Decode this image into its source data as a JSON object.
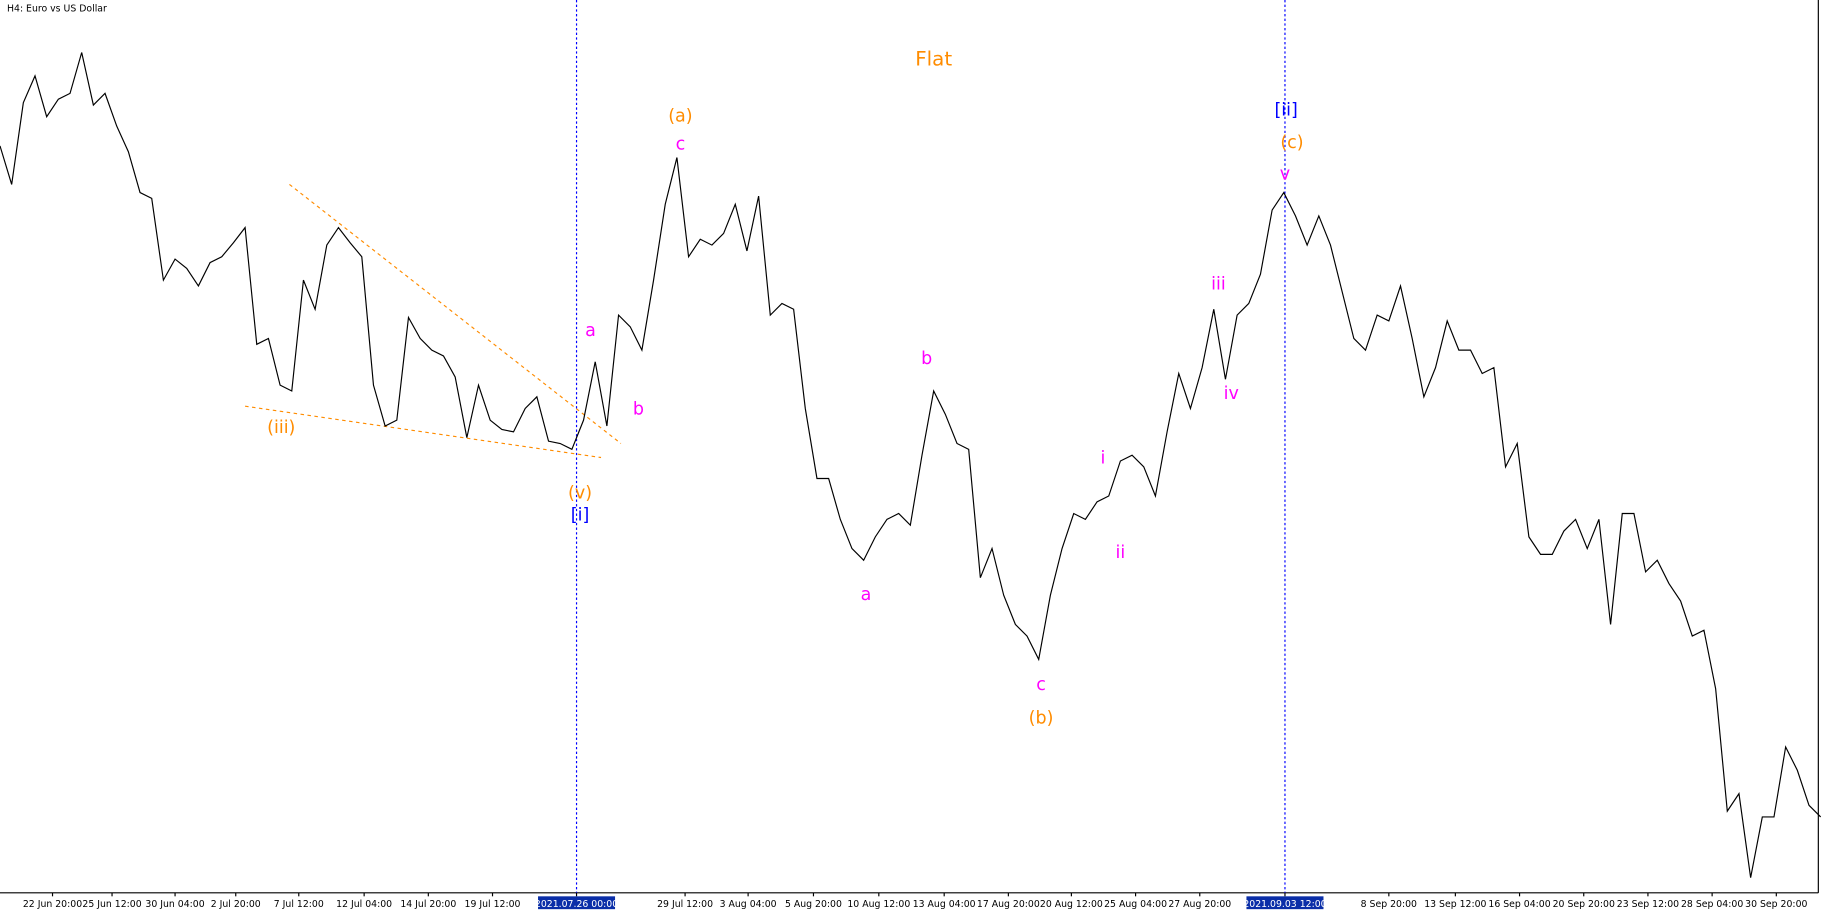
{
  "chart_data": {
    "type": "line",
    "title": "H4:  Euro vs US Dollar",
    "x_tick_labels": [
      "22 Jun 20:00",
      "25 Jun 12:00",
      "30 Jun 04:00",
      "2 Jul 20:00",
      "7 Jul 12:00",
      "12 Jul 04:00",
      "14 Jul 20:00",
      "19 Jul 12:00",
      "2021.07.26 00:00",
      "29 Jul 12:00",
      "3 Aug 04:00",
      "5 Aug 20:00",
      "10 Aug 12:00",
      "13 Aug 04:00",
      "17 Aug 20:00",
      "20 Aug 12:00",
      "25 Aug 04:00",
      "27 Aug 20:00",
      "2021.09.03 12:00",
      "8 Sep 20:00",
      "13 Sep 12:00",
      "16 Sep 04:00",
      "20 Sep 20:00",
      "23 Sep 12:00",
      "28 Sep 04:00",
      "30 Sep 20:00"
    ],
    "ylim": [
      1.1541,
      1.2
    ],
    "series": [
      {
        "color": "#000000",
        "values": [
          1.1925,
          1.19052,
          1.19472,
          1.1961,
          1.194,
          1.1949,
          1.1952,
          1.1973,
          1.1946,
          1.1952,
          1.19352,
          1.1922,
          1.1901,
          1.1898,
          1.1856,
          1.18668,
          1.1862,
          1.1853,
          1.1865,
          1.1868,
          1.18752,
          1.1883,
          1.1823,
          1.1826,
          1.1802,
          1.1799,
          1.1856,
          1.1841,
          1.1874,
          1.1883,
          1.18752,
          1.1868,
          1.1802,
          1.1781,
          1.1784,
          1.18368,
          1.1826,
          1.182,
          1.1817,
          1.18062,
          1.1775,
          1.1802,
          1.1784,
          1.17792,
          1.1778,
          1.179,
          1.1796,
          1.17732,
          1.1772,
          1.1769,
          1.1784,
          1.1814,
          1.1781,
          1.1838,
          1.1832,
          1.182,
          1.1856,
          1.1895,
          1.1919,
          1.1868,
          1.1877,
          1.1874,
          1.188,
          1.1895,
          1.1871,
          1.18992,
          1.1838,
          1.1844,
          1.1841,
          1.179,
          1.1754,
          1.1754,
          1.1733,
          1.1718,
          1.1712,
          1.1724,
          1.1733,
          1.1736,
          1.173,
          1.1766,
          1.1799,
          1.1787,
          1.1772,
          1.1769,
          1.1703,
          1.1718,
          1.1694,
          1.1679,
          1.1673,
          1.1661,
          1.1694,
          1.1718,
          1.1736,
          1.1733,
          1.1742,
          1.1745,
          1.1763,
          1.1766,
          1.176,
          1.1745,
          1.1778,
          1.1808,
          1.179,
          1.1811,
          1.1841,
          1.1805,
          1.1838,
          1.1844,
          1.1859,
          1.1892,
          1.1901,
          1.1889,
          1.1874,
          1.1889,
          1.1874,
          1.185,
          1.1826,
          1.182,
          1.1838,
          1.1835,
          1.1853,
          1.1826,
          1.1796,
          1.1811,
          1.1835,
          1.182,
          1.182,
          1.1808,
          1.1811,
          1.176,
          1.1772,
          1.1724,
          1.1715,
          1.1715,
          1.1727,
          1.1733,
          1.1718,
          1.1733,
          1.1679,
          1.1736,
          1.1736,
          1.1706,
          1.1712,
          1.17,
          1.1691,
          1.1673,
          1.1676,
          1.1646,
          1.1583,
          1.1592,
          1.15488,
          1.158,
          1.158,
          1.1616,
          1.1604,
          1.1586,
          1.158
        ]
      }
    ],
    "annotations": [
      {
        "text": "Flat",
        "color": "#ff8c00"
      },
      {
        "text": "(a)",
        "color": "#ff8c00"
      },
      {
        "text": "c",
        "color": "#ff00ff"
      },
      {
        "text": "[ii]",
        "color": "#0000ff"
      },
      {
        "text": "(c)",
        "color": "#ff8c00"
      },
      {
        "text": "v",
        "color": "#ff00ff"
      },
      {
        "text": "iii",
        "color": "#ff00ff"
      },
      {
        "text": "iv",
        "color": "#ff00ff"
      },
      {
        "text": "a",
        "color": "#ff00ff"
      },
      {
        "text": "b",
        "color": "#ff00ff"
      },
      {
        "text": "(iii)",
        "color": "#ff8c00"
      },
      {
        "text": "(v)",
        "color": "#ff8c00"
      },
      {
        "text": "[i]",
        "color": "#0000ff"
      },
      {
        "text": "b",
        "color": "#ff00ff"
      },
      {
        "text": "a",
        "color": "#ff00ff"
      },
      {
        "text": "c",
        "color": "#ff00ff"
      },
      {
        "text": "(b)",
        "color": "#ff8c00"
      },
      {
        "text": "i",
        "color": "#ff00ff"
      },
      {
        "text": "ii",
        "color": "#ff00ff"
      }
    ]
  }
}
